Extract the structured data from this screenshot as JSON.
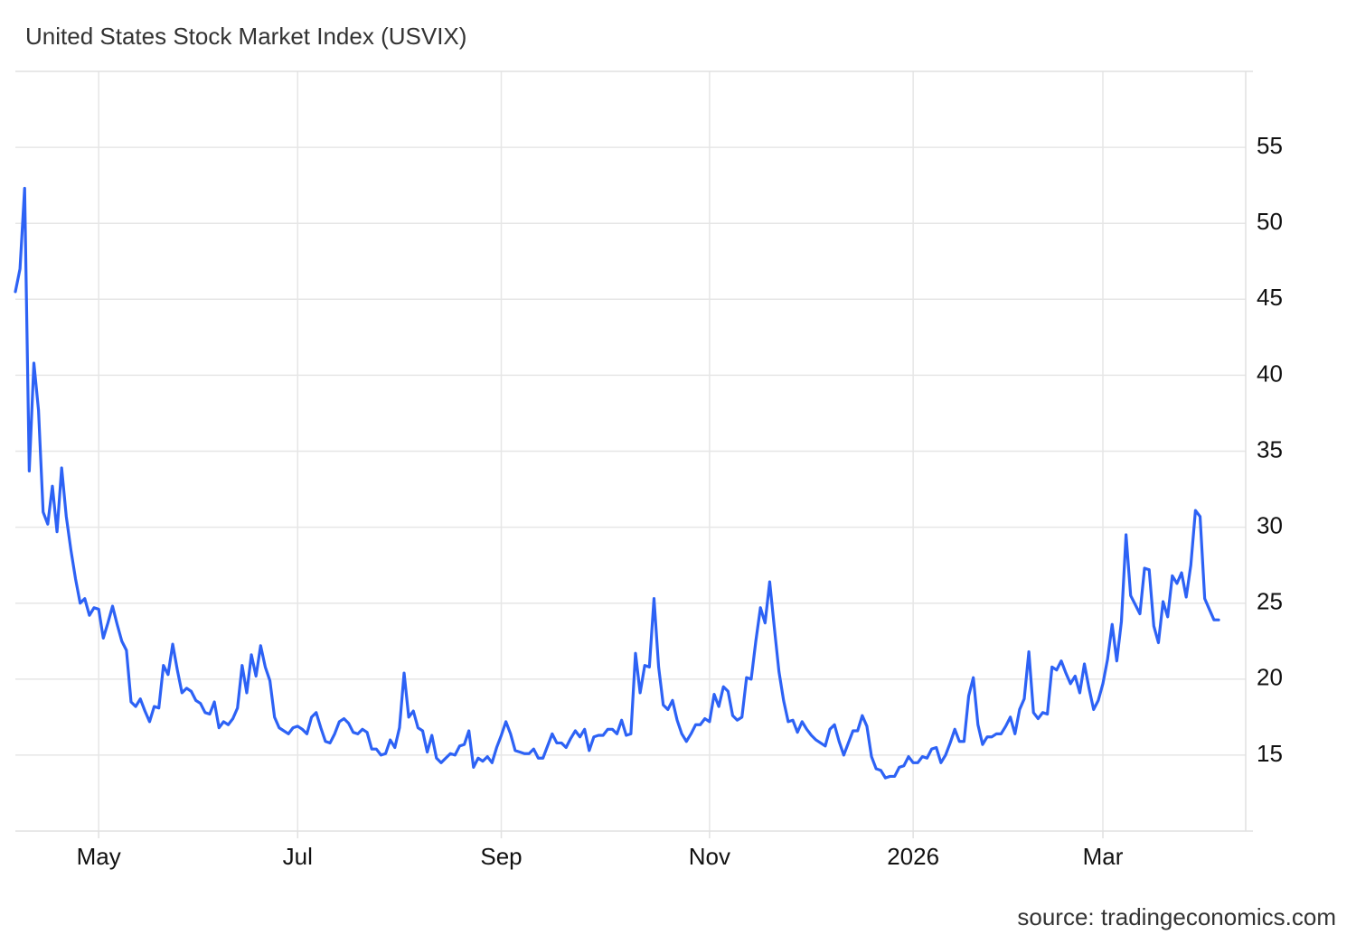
{
  "chart_data": {
    "type": "line",
    "title": "United States Stock Market Index (USVIX)",
    "source": "source: tradingeconomics.com",
    "color": "#2d62f5",
    "grid": true,
    "ylim": [
      10,
      60
    ],
    "yticks": [
      15,
      20,
      25,
      30,
      35,
      40,
      45,
      50,
      55
    ],
    "categories": [
      null,
      null,
      null,
      null,
      null,
      null,
      null,
      null,
      null,
      null,
      null,
      null,
      null,
      null,
      null,
      null,
      null,
      null,
      "May",
      null,
      null,
      null,
      null,
      null,
      null,
      null,
      null,
      null,
      null,
      null,
      null,
      null,
      null,
      null,
      null,
      null,
      null,
      null,
      null,
      null,
      null,
      null,
      null,
      null,
      null,
      null,
      null,
      null,
      null,
      null,
      null,
      null,
      null,
      null,
      null,
      null,
      null,
      null,
      null,
      null,
      null,
      "Jul",
      null,
      null,
      null,
      null,
      null,
      null,
      null,
      null,
      null,
      null,
      null,
      null,
      null,
      null,
      null,
      null,
      null,
      null,
      null,
      null,
      null,
      null,
      null,
      null,
      null,
      null,
      null,
      null,
      null,
      null,
      null,
      null,
      null,
      null,
      null,
      null,
      null,
      null,
      null,
      null,
      null,
      null,
      null,
      "Sep",
      null,
      null,
      null,
      null,
      null,
      null,
      null,
      null,
      null,
      null,
      null,
      null,
      null,
      null,
      null,
      null,
      null,
      null,
      null,
      null,
      null,
      null,
      null,
      null,
      null,
      null,
      null,
      null,
      null,
      null,
      null,
      null,
      null,
      null,
      null,
      null,
      null,
      null,
      null,
      null,
      null,
      null,
      null,
      null,
      "Nov",
      null,
      null,
      null,
      null,
      null,
      null,
      null,
      null,
      null,
      null,
      null,
      null,
      null,
      null,
      null,
      null,
      null,
      null,
      null,
      null,
      null,
      null,
      null,
      null,
      null,
      null,
      null,
      null,
      null,
      null,
      null,
      null,
      null,
      null,
      null,
      null,
      null,
      null,
      null,
      null,
      null,
      null,
      null,
      "2026",
      null,
      null,
      null,
      null,
      null,
      null,
      null,
      null,
      null,
      null,
      null,
      null,
      null,
      null,
      null,
      null,
      null,
      null,
      null,
      null,
      null,
      null,
      null,
      null,
      null,
      null,
      null,
      null,
      null,
      null,
      null,
      null,
      null,
      null,
      null,
      null,
      null,
      null,
      null,
      null,
      "Mar",
      null,
      null,
      null,
      null,
      null,
      null,
      null,
      null,
      null,
      null,
      null,
      null,
      null,
      null,
      null,
      null,
      null,
      null,
      null,
      null,
      null,
      null,
      null,
      null,
      null
    ],
    "values": [
      45.5,
      47,
      52.3,
      33.7,
      40.8,
      37.7,
      31,
      30.2,
      32.7,
      29.7,
      33.9,
      30.7,
      28.5,
      26.6,
      25,
      25.3,
      24.2,
      24.7,
      24.6,
      22.7,
      23.7,
      24.8,
      23.6,
      22.5,
      21.9,
      18.5,
      18.2,
      18.7,
      17.9,
      17.2,
      18.2,
      18.1,
      20.9,
      20.3,
      22.3,
      20.6,
      19.1,
      19.4,
      19.2,
      18.6,
      18.4,
      17.8,
      17.7,
      18.5,
      16.8,
      17.2,
      17,
      17.4,
      18.1,
      20.9,
      19.1,
      21.6,
      20.2,
      22.2,
      20.8,
      19.9,
      17.5,
      16.8,
      16.6,
      16.4,
      16.8,
      16.9,
      16.7,
      16.4,
      17.5,
      17.8,
      16.8,
      15.9,
      15.8,
      16.4,
      17.2,
      17.4,
      17.1,
      16.5,
      16.4,
      16.7,
      16.5,
      15.4,
      15.4,
      15,
      15.1,
      16,
      15.5,
      16.8,
      20.4,
      17.5,
      17.9,
      16.8,
      16.6,
      15.2,
      16.3,
      14.8,
      14.5,
      14.8,
      15.1,
      15,
      15.6,
      15.7,
      16.6,
      14.2,
      14.8,
      14.6,
      14.9,
      14.5,
      15.5,
      16.3,
      17.2,
      16.4,
      15.3,
      15.2,
      15.1,
      15.1,
      15.4,
      14.8,
      14.8,
      15.6,
      16.4,
      15.8,
      15.8,
      15.5,
      16.1,
      16.6,
      16.2,
      16.7,
      15.3,
      16.2,
      16.3,
      16.3,
      16.7,
      16.7,
      16.4,
      17.3,
      16.3,
      16.4,
      21.7,
      19.1,
      20.9,
      20.8,
      25.3,
      20.8,
      18.3,
      18,
      18.6,
      17.3,
      16.4,
      15.9,
      16.4,
      17,
      17,
      17.4,
      17.2,
      19,
      18.2,
      19.5,
      19.2,
      17.6,
      17.3,
      17.5,
      20.1,
      20,
      22.5,
      24.7,
      23.7,
      26.4,
      23.4,
      20.5,
      18.6,
      17.2,
      17.3,
      16.5,
      17.2,
      16.7,
      16.3,
      16,
      15.8,
      15.6,
      16.7,
      17,
      15.9,
      15,
      15.8,
      16.6,
      16.6,
      17.6,
      16.9,
      14.9,
      14.1,
      14,
      13.5,
      13.6,
      13.6,
      14.2,
      14.3,
      14.9,
      14.5,
      14.5,
      14.9,
      14.8,
      15.4,
      15.5,
      14.5,
      15,
      15.8,
      16.7,
      15.9,
      15.9,
      18.9,
      20.1,
      17,
      15.7,
      16.2,
      16.2,
      16.4,
      16.4,
      16.9,
      17.5,
      16.4,
      18,
      18.7,
      21.8,
      17.8,
      17.4,
      17.8,
      17.7,
      20.8,
      20.6,
      21.2,
      20.4,
      19.7,
      20.2,
      19.1,
      21,
      19.4,
      18,
      18.6,
      19.7,
      21.3,
      23.6,
      21.2,
      23.8,
      29.5,
      25.5,
      24.9,
      24.3,
      27.3,
      27.2,
      23.5,
      22.4,
      25.1,
      24.1,
      26.8,
      26.3,
      27,
      25.4,
      27.5,
      31.1,
      30.7,
      25.3,
      24.6,
      23.9,
      23.9
    ]
  }
}
